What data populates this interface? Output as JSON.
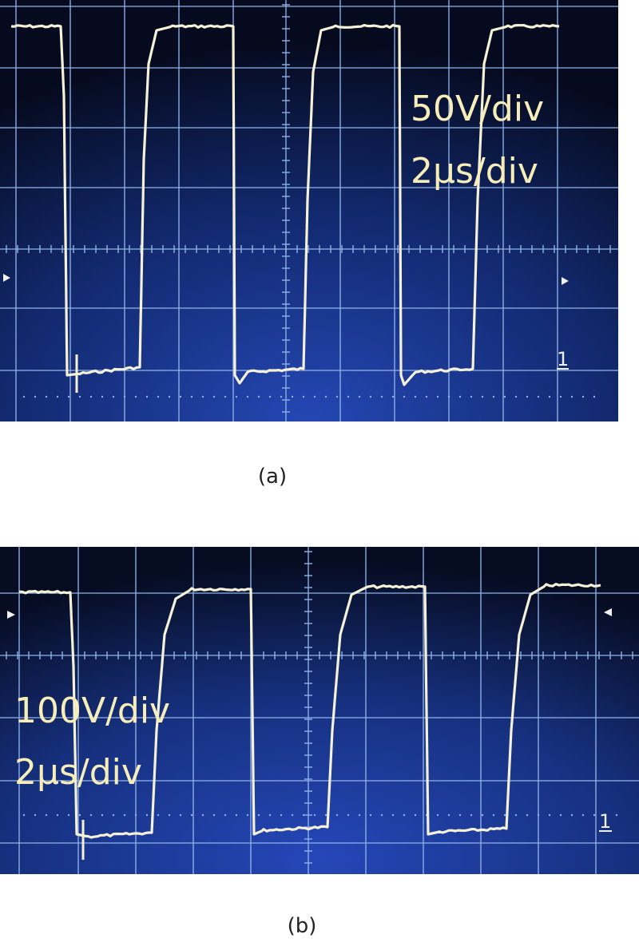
{
  "panels": [
    {
      "id": "a",
      "caption": "(a)",
      "volts_label": "50V/div",
      "time_label": "2μs/div",
      "channel_marker": "1"
    },
    {
      "id": "b",
      "caption": "(b)",
      "volts_label": "100V/div",
      "time_label": "2μs/div",
      "channel_marker": "1"
    }
  ],
  "colors": {
    "screen_dark": "#050a1e",
    "screen_blue": "#1f3fa8",
    "graticule": "#8fb2e6",
    "trace": "#f4f1d6",
    "scale_text": "#f6edb8"
  }
}
